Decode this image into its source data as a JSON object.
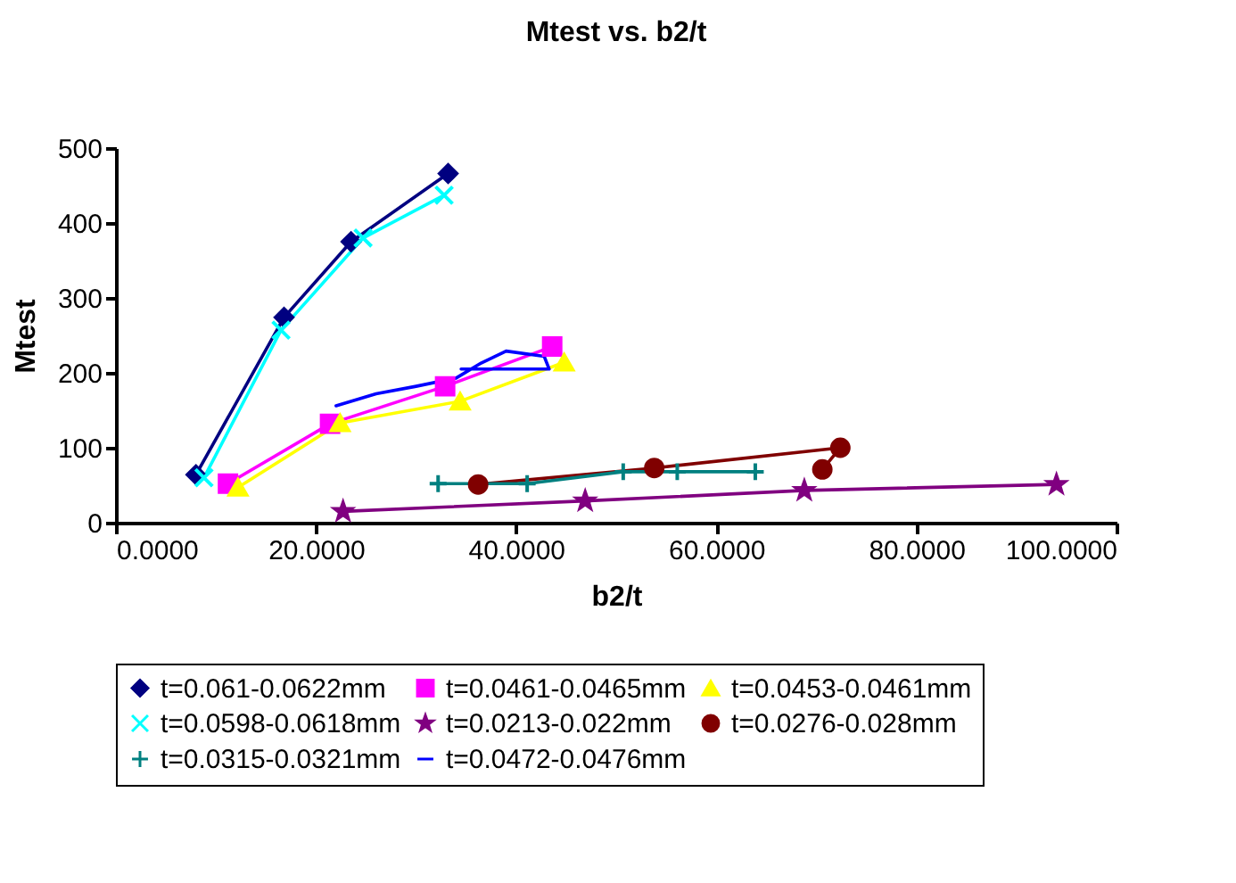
{
  "chart_data": {
    "type": "line",
    "title": "Mtest vs. b2/t",
    "xlabel": "b2/t",
    "ylabel": "Mtest",
    "xlim": [
      0,
      100
    ],
    "xticks": [
      {
        "value": 0,
        "label": "0.0000"
      },
      {
        "value": 20,
        "label": "20.0000"
      },
      {
        "value": 40,
        "label": "40.0000"
      },
      {
        "value": 60,
        "label": "60.0000"
      },
      {
        "value": 80,
        "label": "80.0000"
      },
      {
        "value": 100,
        "label": "100.0000"
      }
    ],
    "ylim": [
      0,
      500
    ],
    "yticks": [
      0,
      100,
      200,
      300,
      400,
      500
    ],
    "grid": false,
    "legend": "bottom",
    "series": [
      {
        "name": "t=0.061-0.0622mm",
        "color": "#000080",
        "marker": "diamond",
        "x": [
          8.0,
          16.8,
          23.5,
          33.2
        ],
        "values": [
          64,
          274,
          375,
          466
        ]
      },
      {
        "name": "t=0.0461-0.0465mm",
        "color": "#ff00ff",
        "marker": "square",
        "x": [
          11.2,
          21.4,
          32.9,
          43.6
        ],
        "values": [
          52,
          132,
          182,
          235
        ]
      },
      {
        "name": "t=0.0453-0.0461mm",
        "color": "#ffff00",
        "marker": "triangle",
        "x": [
          12.2,
          22.4,
          34.4,
          44.8
        ],
        "values": [
          47,
          133,
          162,
          214
        ]
      },
      {
        "name": "t=0.0598-0.0618mm",
        "color": "#00ffff",
        "marker": "cross",
        "x": [
          8.8,
          16.5,
          24.7,
          32.8
        ],
        "values": [
          60,
          257,
          380,
          437
        ]
      },
      {
        "name": "t=0.0213-0.022mm",
        "color": "#800080",
        "marker": "star",
        "x": [
          22.7,
          46.9,
          68.8,
          94.0
        ],
        "values": [
          15,
          29,
          43,
          51
        ]
      },
      {
        "name": "t=0.0276-0.028mm",
        "color": "#800000",
        "marker": "circle",
        "x": [
          36.2,
          53.8,
          72.4,
          70.6
        ],
        "values": [
          51,
          73,
          100,
          71
        ]
      },
      {
        "name": "t=0.0315-0.0321mm",
        "color": "#008080",
        "marker": "plus",
        "x": [
          32.2,
          41.1,
          50.7,
          56.1,
          63.9
        ],
        "values": [
          52,
          52,
          68,
          68,
          68
        ]
      },
      {
        "name": "t=0.0472-0.0476mm",
        "color": "#0000ff",
        "marker": "none",
        "x": [
          22.0,
          26.0,
          30.0,
          34.0,
          36.5,
          39.0,
          42.8,
          43.3,
          34.5
        ],
        "values": [
          156,
          172,
          182,
          193,
          213,
          229,
          222,
          205,
          205
        ]
      }
    ]
  }
}
